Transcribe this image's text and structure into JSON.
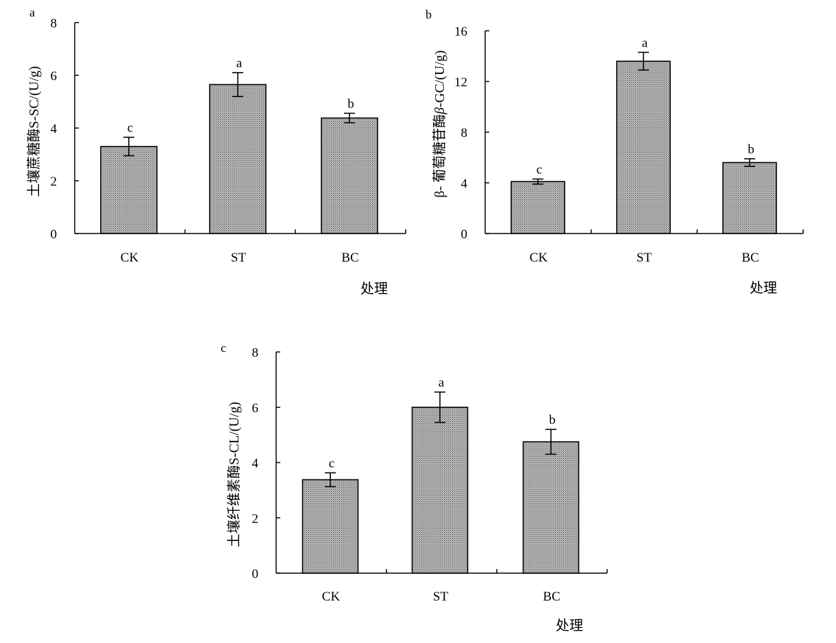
{
  "chart_data": [
    {
      "panel": "a",
      "type": "bar",
      "categories": [
        "CK",
        "ST",
        "BC"
      ],
      "values": [
        3.3,
        5.65,
        4.38
      ],
      "errors": [
        0.35,
        0.45,
        0.18
      ],
      "significance": [
        "c",
        "a",
        "b"
      ],
      "ylabel": "土壤蔗糖酶S-SC/(U/g)",
      "xlabel": "处理",
      "ylim": [
        0,
        8
      ],
      "yticks": [
        0,
        2,
        4,
        6,
        8
      ],
      "bar_fill": "#a6a6a6"
    },
    {
      "panel": "b",
      "type": "bar",
      "categories": [
        "CK",
        "ST",
        "BC"
      ],
      "values": [
        4.1,
        13.6,
        5.6
      ],
      "errors": [
        0.2,
        0.7,
        0.3
      ],
      "significance": [
        "c",
        "a",
        "b"
      ],
      "ylabel_prefix": "β",
      "ylabel_main": "- 葡萄糖苷酶",
      "ylabel_italic": "β",
      "ylabel_suffix": "-GC/(U/g)",
      "xlabel": "处理",
      "ylim": [
        0,
        16
      ],
      "yticks": [
        0,
        4,
        8,
        12,
        16
      ],
      "bar_fill": "#a6a6a6"
    },
    {
      "panel": "c",
      "type": "bar",
      "categories": [
        "CK",
        "ST",
        "BC"
      ],
      "values": [
        3.38,
        6.0,
        4.75
      ],
      "errors": [
        0.25,
        0.55,
        0.45
      ],
      "significance": [
        "c",
        "a",
        "b"
      ],
      "ylabel": "土壤纤维素酶S-CL/(U/g)",
      "xlabel": "处理",
      "ylim": [
        0,
        8
      ],
      "yticks": [
        0,
        2,
        4,
        6,
        8
      ],
      "bar_fill": "#a6a6a6"
    }
  ]
}
